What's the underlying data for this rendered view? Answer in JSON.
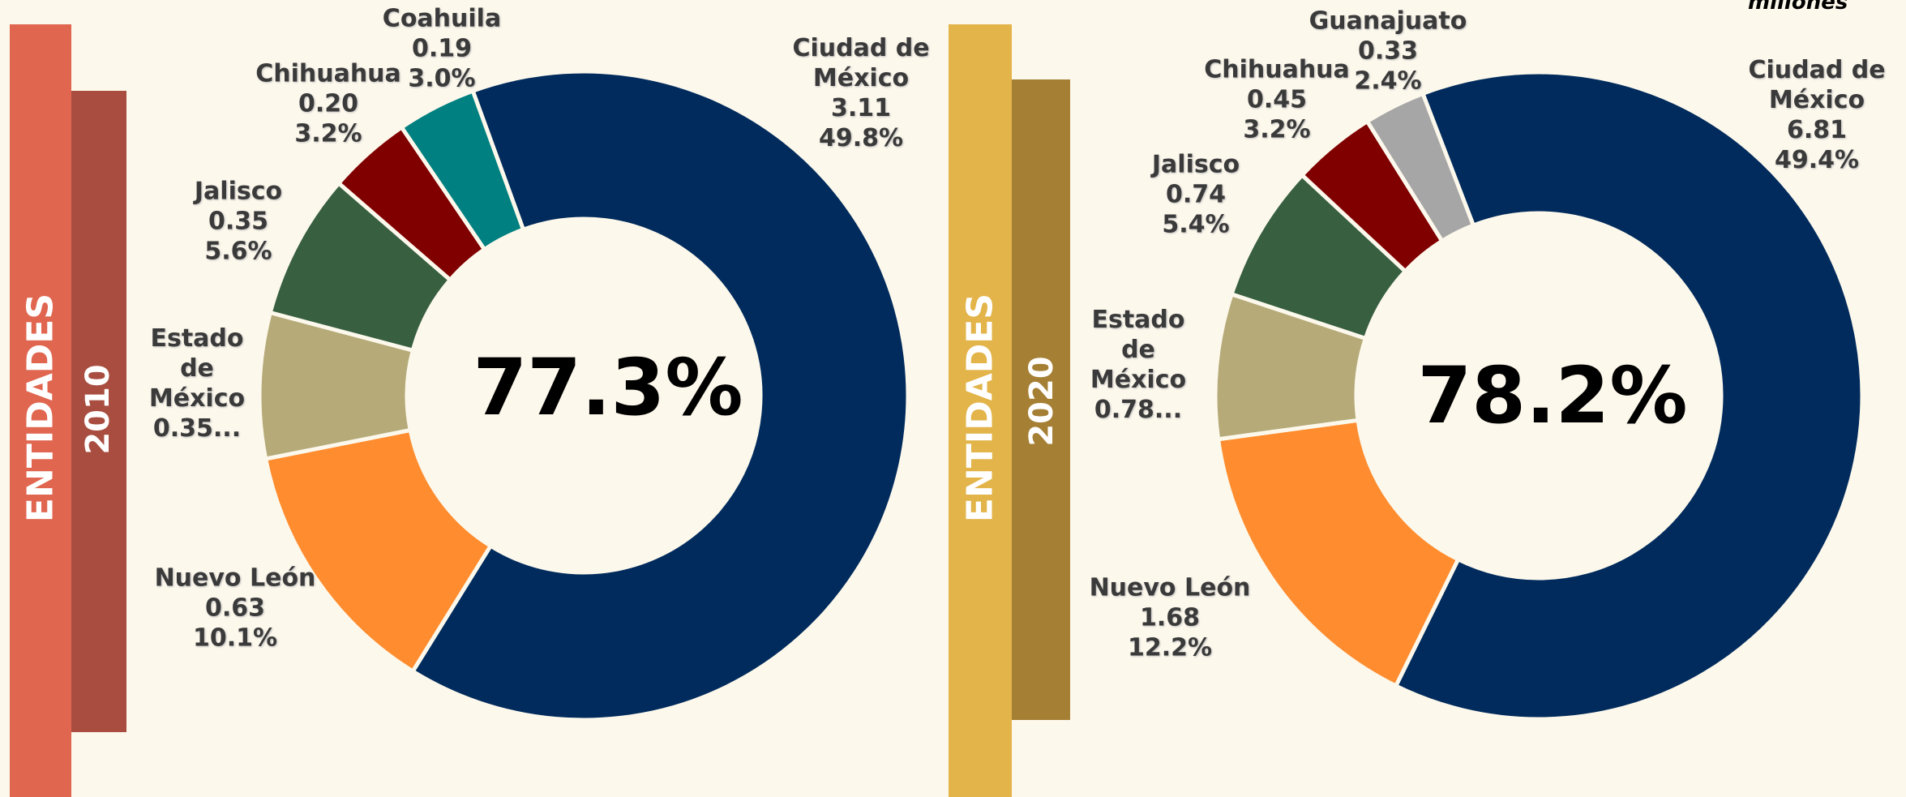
{
  "units": "millones",
  "chart_data": [
    {
      "type": "donut",
      "side_label": "ENTIDADES",
      "year": "2010",
      "center_label": "77.3%",
      "categories": [
        "Ciudad de México",
        "Nuevo León",
        "Estado de México",
        "Jalisco",
        "Chihuahua",
        "Coahuila"
      ],
      "values": [
        3.11,
        0.63,
        0.35,
        0.35,
        0.2,
        0.19
      ],
      "value_labels": [
        "3.11",
        "0.63",
        "0.35...",
        "0.35",
        "0.20",
        "0.19"
      ],
      "percent_labels": [
        "49.8%",
        "10.1%",
        null,
        "5.6%",
        "3.2%",
        "3.0%"
      ],
      "colors": [
        "#002b5c",
        "#ff8c2e",
        "#b5aa78",
        "#375f40",
        "#800000",
        "#008080"
      ]
    },
    {
      "type": "donut",
      "side_label": "ENTIDADES",
      "year": "2020",
      "center_label": "78.2%",
      "categories": [
        "Ciudad de México",
        "Nuevo León",
        "Estado de México",
        "Jalisco",
        "Chihuahua",
        "Guanajuato"
      ],
      "values": [
        6.81,
        1.68,
        0.78,
        0.74,
        0.45,
        0.33
      ],
      "value_labels": [
        "6.81",
        "1.68",
        "0.78...",
        "0.74",
        "0.45",
        "0.33"
      ],
      "percent_labels": [
        "49.4%",
        "12.2%",
        null,
        "5.4%",
        "3.2%",
        "2.4%"
      ],
      "colors": [
        "#002b5c",
        "#ff8c2e",
        "#b5aa78",
        "#375f40",
        "#800000",
        "#a6a6a6"
      ]
    }
  ]
}
